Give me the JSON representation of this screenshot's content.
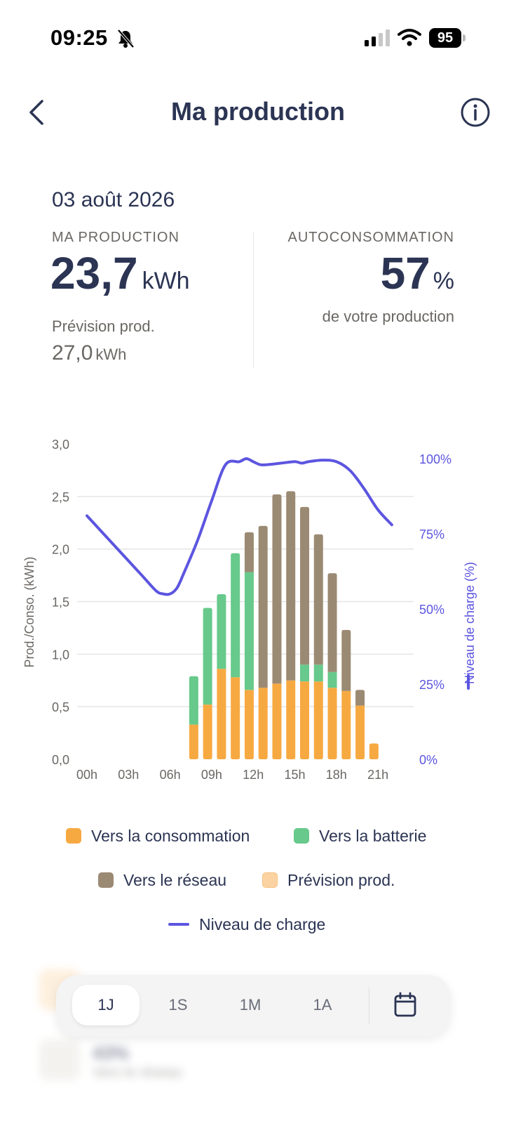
{
  "status_bar": {
    "time": "09:25",
    "battery": "95"
  },
  "header": {
    "title": "Ma production"
  },
  "summary": {
    "date": "03 août 2026",
    "production_label": "MA PRODUCTION",
    "production_value": "23,7",
    "production_unit": "kWh",
    "forecast_label": "Prévision prod.",
    "forecast_value": "27,0",
    "forecast_unit": "kWh",
    "autoconso_label": "AUTOCONSOMMATION",
    "autoconso_value": "57",
    "autoconso_unit": "%",
    "autoconso_sub": "de votre production"
  },
  "colors": {
    "consumption": "#f7a941",
    "battery": "#67c98b",
    "grid": "#9b8a73",
    "forecast": "#fbd3a2",
    "charge": "#5c55e0",
    "text": "#2b3453"
  },
  "chart_data": {
    "type": "bar",
    "ylabel": "Prod./Conso. (kWh)",
    "y2label": "Niveau de charge (%)",
    "ylim": [
      0,
      3.0
    ],
    "y2lim": [
      0,
      100
    ],
    "y_ticks": [
      "0,0",
      "0,5",
      "1,0",
      "1,5",
      "2,0",
      "2,5",
      "3,0"
    ],
    "y2_ticks": [
      "0%",
      "25%",
      "50%",
      "75%",
      "100%"
    ],
    "x_ticks": [
      "00h",
      "03h",
      "06h",
      "09h",
      "12h",
      "15h",
      "18h",
      "21h"
    ],
    "grid": true,
    "hours": [
      7,
      8,
      9,
      10,
      11,
      12,
      13,
      14,
      15,
      16,
      17,
      18,
      19,
      20
    ],
    "series": [
      {
        "name": "Vers la consommation",
        "values": [
          0.33,
          0.52,
          0.86,
          0.78,
          0.66,
          0.68,
          0.72,
          0.75,
          0.74,
          0.74,
          0.68,
          0.65,
          0.51,
          0.15
        ]
      },
      {
        "name": "Vers la batterie",
        "values": [
          0.46,
          0.92,
          0.71,
          1.18,
          1.12,
          0.0,
          0.0,
          0.0,
          0.16,
          0.16,
          0.15,
          0.0,
          0.0,
          0.0
        ]
      },
      {
        "name": "Vers le réseau",
        "values": [
          0.0,
          0.0,
          0.0,
          0.0,
          0.38,
          1.54,
          1.8,
          1.8,
          1.5,
          1.24,
          0.94,
          0.58,
          0.15,
          0.0
        ]
      }
    ],
    "charge_line": {
      "name": "Niveau de charge",
      "x": [
        0,
        1,
        2,
        3,
        4,
        5,
        5.5,
        6,
        6.5,
        7,
        8,
        9,
        10,
        11,
        11.5,
        12,
        12.5,
        13,
        14,
        15,
        15.5,
        16,
        17,
        18,
        19,
        20,
        21,
        22
      ],
      "y": [
        81,
        76,
        71,
        66,
        61,
        56,
        55,
        55,
        57,
        62,
        73,
        86,
        98,
        99,
        100,
        99,
        98,
        98,
        98.5,
        99,
        98.5,
        99,
        99.5,
        99,
        96,
        90,
        83,
        78
      ]
    }
  },
  "legend": {
    "consumption": "Vers la consommation",
    "battery": "Vers la batterie",
    "grid": "Vers le réseau",
    "forecast": "Prévision prod.",
    "charge": "Niveau de charge"
  },
  "background_rows": [
    {
      "title": "43%",
      "subtitle": "Vers le réseau"
    }
  ],
  "period_selector": {
    "tabs": [
      "1J",
      "1S",
      "1M",
      "1A"
    ],
    "active": "1J"
  }
}
